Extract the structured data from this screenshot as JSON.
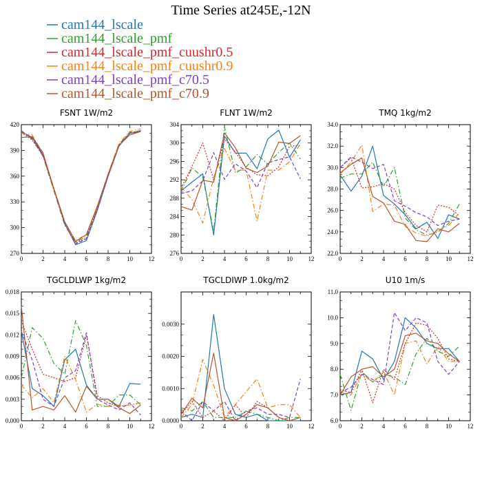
{
  "title": "Time Series at245E,-12N",
  "chart_data": {
    "type": "line",
    "legend": [
      {
        "name": "cam144_lscale",
        "color": "#1f77b4",
        "dash": "solid"
      },
      {
        "name": "cam144_lscale_pmf",
        "color": "#2ca02c",
        "dash": "dashdot"
      },
      {
        "name": "cam144_lscale_pmf_cuushr0.5",
        "color": "#d62728",
        "dash": "dotted"
      },
      {
        "name": "cam144_lscale_pmf_cuushr0.9",
        "color": "#ff7f0e",
        "dash": "dashdot"
      },
      {
        "name": "cam144_lscale_pmf_c70.5",
        "color": "#7f3fbf",
        "dash": "dashed"
      },
      {
        "name": "cam144_lscale_pmf_c70.9",
        "color": "#b5542a",
        "dash": "solid"
      }
    ],
    "charts": [
      {
        "title": "FSNT   1W/m2",
        "x": [
          0,
          1,
          2,
          3,
          4,
          5,
          6,
          7,
          8,
          9,
          10,
          11
        ],
        "xlim": [
          0,
          12
        ],
        "xticks": [
          "0",
          "2",
          "4",
          "6",
          "8",
          "10",
          "12"
        ],
        "xtick_values": [
          0,
          2,
          4,
          6,
          8,
          10,
          12
        ],
        "ylim": [
          270,
          420
        ],
        "yticks": [
          "270",
          "300",
          "330",
          "360",
          "390",
          "420"
        ],
        "ytick_values": [
          270,
          300,
          330,
          360,
          390,
          420
        ],
        "series": [
          [
            412,
            405,
            385,
            345,
            305,
            280,
            285,
            320,
            360,
            395,
            410,
            412
          ],
          [
            413,
            403,
            383,
            343,
            303,
            283,
            290,
            323,
            362,
            397,
            411,
            413
          ],
          [
            411,
            402,
            384,
            344,
            305,
            282,
            288,
            322,
            361,
            396,
            410,
            412
          ],
          [
            410,
            408,
            386,
            346,
            306,
            285,
            292,
            323,
            363,
            398,
            412,
            415
          ],
          [
            412,
            404,
            384,
            345,
            304,
            281,
            287,
            321,
            360,
            396,
            410,
            413
          ],
          [
            405,
            406,
            387,
            345,
            307,
            284,
            292,
            325,
            362,
            396,
            408,
            412
          ]
        ]
      },
      {
        "title": "FLNT   1W/m2",
        "x": [
          0,
          1,
          2,
          3,
          4,
          5,
          6,
          7,
          8,
          9,
          10,
          11
        ],
        "xlim": [
          0,
          12
        ],
        "xticks": [
          "0",
          "2",
          "4",
          "6",
          "8",
          "10",
          "12"
        ],
        "xtick_values": [
          0,
          2,
          4,
          6,
          8,
          10,
          12
        ],
        "ylim": [
          276,
          304
        ],
        "yticks": [
          "276",
          "280",
          "284",
          "288",
          "292",
          "296",
          "300",
          "304"
        ],
        "ytick_values": [
          276,
          280,
          284,
          288,
          292,
          296,
          300,
          304
        ],
        "series": [
          [
            289.6,
            291.5,
            293.3,
            280.0,
            301.5,
            297.8,
            297.8,
            294.4,
            300.9,
            302.8,
            296.9,
            300.7
          ],
          [
            289.4,
            294.6,
            292.6,
            280.8,
            303.5,
            293.5,
            294.8,
            297.5,
            295.4,
            298.0,
            300.0,
            296.5
          ],
          [
            290.2,
            294.9,
            300.0,
            292.0,
            300.9,
            298.0,
            294.7,
            293.1,
            292.9,
            294.8,
            299.3,
            299.5
          ],
          [
            290.5,
            287.7,
            282.6,
            292.5,
            298.8,
            294.1,
            294.1,
            283.0,
            294.1,
            294.1,
            295.9,
            299.9
          ],
          [
            289.0,
            289.6,
            291.8,
            297.9,
            292.1,
            295.5,
            293.9,
            290.3,
            295.7,
            296.4,
            297.0,
            292.2
          ],
          [
            286.2,
            285.4,
            291.9,
            291.5,
            302.2,
            299.0,
            294.5,
            293.6,
            295.0,
            300.2,
            299.9,
            301.6
          ]
        ]
      },
      {
        "title": "TMQ   1kg/m2",
        "x": [
          0,
          1,
          2,
          3,
          4,
          5,
          6,
          7,
          8,
          9,
          10,
          11
        ],
        "xlim": [
          0,
          12
        ],
        "xticks": [
          "0",
          "2",
          "4",
          "6",
          "8",
          "10",
          "12"
        ],
        "xtick_values": [
          0,
          2,
          4,
          6,
          8,
          10,
          12
        ],
        "ylim": [
          22.0,
          34.0
        ],
        "yticks": [
          "22.0",
          "24.0",
          "26.0",
          "28.0",
          "30.0",
          "32.0",
          "34.0"
        ],
        "ytick_values": [
          22,
          24,
          26,
          28,
          30,
          32,
          34
        ],
        "series": [
          [
            29.3,
            27.8,
            29.2,
            32.0,
            27.4,
            26.6,
            25.6,
            24.3,
            24.9,
            23.4,
            25.6,
            25.2
          ],
          [
            29.0,
            29.4,
            29.4,
            30.5,
            28.2,
            30.0,
            25.3,
            24.2,
            23.7,
            24.0,
            24.8,
            26.6
          ],
          [
            30.0,
            30.9,
            28.1,
            28.2,
            28.5,
            28.0,
            25.8,
            24.6,
            24.0,
            26.5,
            26.3,
            25.5
          ],
          [
            29.4,
            30.5,
            32.1,
            25.9,
            26.6,
            26.5,
            24.5,
            23.9,
            23.6,
            24.1,
            24.6,
            25.8
          ],
          [
            30.0,
            31.0,
            30.5,
            29.9,
            30.3,
            26.9,
            26.4,
            25.8,
            25.4,
            24.6,
            25.0,
            25.2
          ],
          [
            29.5,
            30.3,
            30.9,
            27.3,
            26.7,
            25.0,
            24.7,
            23.2,
            23.1,
            24.3,
            24.0,
            24.8
          ]
        ]
      },
      {
        "title": "TGCLDLWP   1kg/m2",
        "x": [
          0,
          1,
          2,
          3,
          4,
          5,
          6,
          7,
          8,
          9,
          10,
          11
        ],
        "xlim": [
          0,
          12
        ],
        "xticks": [
          "0",
          "2",
          "4",
          "6",
          "8",
          "10",
          "12"
        ],
        "xtick_values": [
          0,
          2,
          4,
          6,
          8,
          10,
          12
        ],
        "ylim": [
          0.0,
          0.018
        ],
        "yticks": [
          "0.000",
          "0.003",
          "0.006",
          "0.009",
          "0.012",
          "0.015",
          "0.018"
        ],
        "ytick_values": [
          0,
          0.003,
          0.006,
          0.009,
          0.012,
          0.015,
          0.018
        ],
        "series": [
          [
            0.0125,
            0.0045,
            0.0035,
            0.002,
            0.0085,
            0.01,
            0.005,
            0.003,
            0.003,
            0.002,
            0.0052,
            0.0051
          ],
          [
            0.006,
            0.013,
            0.0115,
            0.008,
            0.0065,
            0.014,
            0.0105,
            0.002,
            0.002,
            0.0036,
            0.0036,
            0.0022
          ],
          [
            0.014,
            0.01,
            0.0065,
            0.006,
            0.0055,
            0.006,
            0.012,
            0.0035,
            0.0025,
            0.002,
            0.0022,
            0.0025
          ],
          [
            0.005,
            0.0032,
            0.0045,
            0.0025,
            0.009,
            0.0058,
            0.0012,
            0.0023,
            0.002,
            0.0022,
            0.0022,
            0.0025
          ],
          [
            0.0125,
            0.0085,
            0.003,
            0.002,
            0.006,
            0.007,
            0.0123,
            0.003,
            0.0022,
            0.0015,
            0.0025,
            0.0008
          ],
          [
            0.016,
            0.0015,
            0.002,
            0.0015,
            0.0035,
            0.0012,
            0.0048,
            0.003,
            0.003,
            0.0018,
            0.001,
            0.0022
          ]
        ]
      },
      {
        "title": "TGCLDIWP   1.0kg/m2",
        "x": [
          0,
          1,
          2,
          3,
          4,
          5,
          6,
          7,
          8,
          9,
          10,
          11
        ],
        "xlim": [
          0,
          12
        ],
        "xticks": [
          "0",
          "2",
          "4",
          "6",
          "8",
          "10",
          "12"
        ],
        "xtick_values": [
          0,
          2,
          4,
          6,
          8,
          10,
          12
        ],
        "ylim": [
          0.0,
          0.004
        ],
        "yticks": [
          "0.0000",
          "0.0010",
          "0.0020",
          "0.0030"
        ],
        "ytick_values": [
          0,
          0.001,
          0.002,
          0.003
        ],
        "series": [
          [
            0.0001,
            0.0002,
            0.0001,
            0.0033,
            0.001,
            0.0002,
            0.0001,
            0.0002,
            0.0,
            0.0,
            0.0,
            0.0
          ],
          [
            0.0004,
            0.0003,
            0.0006,
            0.0001,
            0.0001,
            0.0001,
            0.0003,
            0.0002,
            0.0001,
            0.0,
            0.0001,
            0.0001
          ],
          [
            0.0002,
            0.0006,
            0.0001,
            0.0003,
            0.0,
            0.0005,
            0.0001,
            0.0006,
            0.0004,
            0.0001,
            0.0,
            0.0001
          ],
          [
            0.0001,
            0.0005,
            0.0019,
            0.0011,
            0.0001,
            0.0005,
            0.0009,
            0.0013,
            0.0004,
            0.0005,
            0.0005,
            0.0001
          ],
          [
            0.0003,
            0.0,
            0.0006,
            0.0003,
            0.0006,
            0.0,
            0.0003,
            0.0004,
            0.0002,
            0.0002,
            0.0001,
            0.0013
          ],
          [
            0.0002,
            0.0007,
            0.0004,
            0.0021,
            0.0001,
            0.0,
            0.0002,
            0.0005,
            0.0004,
            0.0001,
            0.0,
            0.0001
          ]
        ]
      },
      {
        "title": "U10   1m/s",
        "x": [
          0,
          1,
          2,
          3,
          4,
          5,
          6,
          7,
          8,
          9,
          10,
          11
        ],
        "xlim": [
          0,
          12
        ],
        "xticks": [
          "0",
          "2",
          "4",
          "6",
          "8",
          "10",
          "12"
        ],
        "xtick_values": [
          0,
          2,
          4,
          6,
          8,
          10,
          12
        ],
        "ylim": [
          6.0,
          11.0
        ],
        "yticks": [
          "6.0",
          "7.0",
          "8.0",
          "9.0",
          "10.0",
          "11.0"
        ],
        "ytick_values": [
          6,
          7,
          8,
          9,
          10,
          11
        ],
        "series": [
          [
            7.0,
            7.1,
            8.7,
            8.4,
            7.6,
            8.3,
            10.0,
            9.6,
            9.0,
            8.8,
            8.8,
            8.3
          ],
          [
            7.8,
            6.4,
            7.9,
            7.5,
            7.8,
            7.7,
            7.4,
            8.6,
            9.2,
            8.7,
            8.5,
            8.9
          ],
          [
            7.2,
            7.1,
            8.0,
            6.7,
            8.0,
            7.6,
            9.0,
            9.8,
            9.7,
            9.2,
            8.4,
            8.3
          ],
          [
            7.1,
            7.0,
            7.8,
            7.5,
            7.9,
            7.0,
            9.0,
            9.1,
            8.2,
            8.9,
            8.3,
            8.3
          ],
          [
            7.1,
            7.3,
            7.8,
            7.6,
            7.4,
            10.2,
            9.5,
            10.0,
            9.8,
            8.3,
            7.8,
            8.3
          ],
          [
            7.0,
            7.7,
            8.0,
            8.1,
            7.7,
            8.0,
            9.3,
            9.4,
            9.1,
            9.0,
            8.6,
            8.3
          ]
        ]
      }
    ]
  }
}
